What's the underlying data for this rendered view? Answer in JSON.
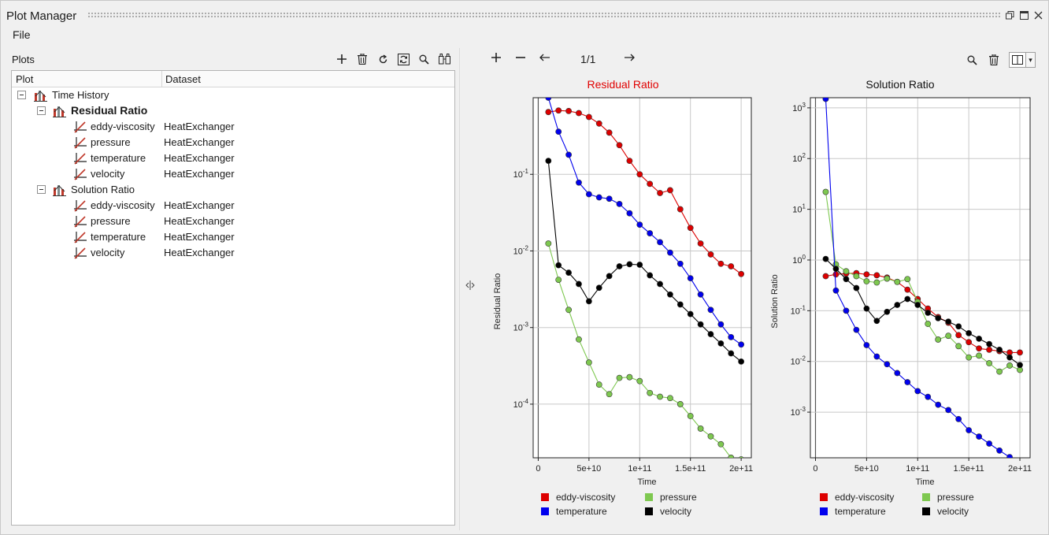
{
  "window": {
    "title": "Plot Manager"
  },
  "menu": {
    "file": "File"
  },
  "left": {
    "label": "Plots",
    "columns": {
      "plot": "Plot",
      "dataset": "Dataset"
    },
    "tree": {
      "root": "Time History",
      "groups": [
        {
          "label": "Residual Ratio",
          "bold": true,
          "items": [
            {
              "name": "eddy-viscosity",
              "dataset": "HeatExchanger"
            },
            {
              "name": "pressure",
              "dataset": "HeatExchanger"
            },
            {
              "name": "temperature",
              "dataset": "HeatExchanger"
            },
            {
              "name": "velocity",
              "dataset": "HeatExchanger"
            }
          ]
        },
        {
          "label": "Solution Ratio",
          "bold": false,
          "items": [
            {
              "name": "eddy-viscosity",
              "dataset": "HeatExchanger"
            },
            {
              "name": "pressure",
              "dataset": "HeatExchanger"
            },
            {
              "name": "temperature",
              "dataset": "HeatExchanger"
            },
            {
              "name": "velocity",
              "dataset": "HeatExchanger"
            }
          ]
        }
      ]
    },
    "toolbar_icons": [
      "add-icon",
      "delete-icon",
      "refresh-icon",
      "reload-icon",
      "search-icon",
      "compare-icon"
    ]
  },
  "right": {
    "page": "1/1",
    "toolbar_icons": [
      "zoom-in-icon",
      "zoom-out-icon",
      "back-arrow-icon",
      "forward-arrow-icon",
      "search-icon",
      "delete-icon",
      "layout-icon",
      "dropdown-icon"
    ]
  },
  "colors": {
    "eddy-viscosity": "#dd0000",
    "pressure": "#7ec850",
    "temperature": "#0000ee",
    "velocity": "#000000",
    "active_title": "#e00000"
  },
  "chart_data": [
    {
      "type": "line",
      "title": "Residual Ratio",
      "title_active": true,
      "xlabel": "Time",
      "ylabel": "Residual Ratio",
      "xlim": [
        -5000000000.0,
        210000000000.0
      ],
      "ylim_log10": [
        -4.7,
        0.0
      ],
      "x_ticks": [
        {
          "v": 0,
          "label": "0"
        },
        {
          "v": 50000000000.0,
          "label": "5e+10"
        },
        {
          "v": 100000000000.0,
          "label": "1e+11"
        },
        {
          "v": 150000000000.0,
          "label": "1.5e+11"
        },
        {
          "v": 200000000000.0,
          "label": "2e+11"
        }
      ],
      "y_ticks": [
        {
          "v": -1,
          "base": "10",
          "exp": "-1"
        },
        {
          "v": -2,
          "base": "10",
          "exp": "-2"
        },
        {
          "v": -3,
          "base": "10",
          "exp": "-3"
        },
        {
          "v": -4,
          "base": "10",
          "exp": "-4"
        }
      ],
      "x": [
        10000000000.0,
        20000000000.0,
        30000000000.0,
        40000000000.0,
        50000000000.0,
        60000000000.0,
        70000000000.0,
        80000000000.0,
        90000000000.0,
        100000000000.0,
        110000000000.0,
        120000000000.0,
        130000000000.0,
        140000000000.0,
        150000000000.0,
        160000000000.0,
        170000000000.0,
        180000000000.0,
        190000000000.0,
        200000000000.0
      ],
      "series": [
        {
          "name": "eddy-viscosity",
          "values": [
            0.65,
            0.68,
            0.67,
            0.63,
            0.56,
            0.46,
            0.35,
            0.24,
            0.15,
            0.1,
            0.075,
            0.057,
            0.062,
            0.035,
            0.02,
            0.0125,
            0.009,
            0.0068,
            0.0063,
            0.005
          ]
        },
        {
          "name": "pressure",
          "values": [
            0.0125,
            0.0042,
            0.0017,
            0.0007,
            0.00035,
            0.00018,
            0.000135,
            0.00022,
            0.000225,
            0.0002,
            0.00014,
            0.000125,
            0.00012,
            0.0001,
            7e-05,
            4.8e-05,
            3.8e-05,
            3e-05,
            2e-05,
            1.9e-05
          ]
        },
        {
          "name": "temperature",
          "values": [
            1.0,
            0.36,
            0.18,
            0.078,
            0.055,
            0.05,
            0.048,
            0.041,
            0.031,
            0.022,
            0.017,
            0.013,
            0.0095,
            0.0068,
            0.0044,
            0.0027,
            0.0017,
            0.0011,
            0.00075,
            0.0006
          ]
        },
        {
          "name": "velocity",
          "values": [
            0.15,
            0.0065,
            0.0052,
            0.0037,
            0.0022,
            0.0033,
            0.0047,
            0.0063,
            0.0067,
            0.0066,
            0.0048,
            0.0037,
            0.0027,
            0.002,
            0.0015,
            0.0011,
            0.00082,
            0.00062,
            0.00046,
            0.00036
          ]
        }
      ],
      "legend": "bottom"
    },
    {
      "type": "line",
      "title": "Solution Ratio",
      "title_active": false,
      "xlabel": "Time",
      "ylabel": "Solution Ratio",
      "xlim": [
        -5000000000.0,
        210000000000.0
      ],
      "ylim_log10": [
        -3.9,
        3.2
      ],
      "x_ticks": [
        {
          "v": 0,
          "label": "0"
        },
        {
          "v": 50000000000.0,
          "label": "5e+10"
        },
        {
          "v": 100000000000.0,
          "label": "1e+11"
        },
        {
          "v": 150000000000.0,
          "label": "1.5e+11"
        },
        {
          "v": 200000000000.0,
          "label": "2e+11"
        }
      ],
      "y_ticks": [
        {
          "v": 3,
          "base": "10",
          "exp": "3"
        },
        {
          "v": 2,
          "base": "10",
          "exp": "2"
        },
        {
          "v": 1,
          "base": "10",
          "exp": "1"
        },
        {
          "v": 0,
          "base": "10",
          "exp": "0"
        },
        {
          "v": -1,
          "base": "10",
          "exp": "-1"
        },
        {
          "v": -2,
          "base": "10",
          "exp": "-2"
        },
        {
          "v": -3,
          "base": "10",
          "exp": "-3"
        }
      ],
      "x": [
        10000000000.0,
        20000000000.0,
        30000000000.0,
        40000000000.0,
        50000000000.0,
        60000000000.0,
        70000000000.0,
        80000000000.0,
        90000000000.0,
        100000000000.0,
        110000000000.0,
        120000000000.0,
        130000000000.0,
        140000000000.0,
        150000000000.0,
        160000000000.0,
        170000000000.0,
        180000000000.0,
        190000000000.0,
        200000000000.0
      ],
      "series": [
        {
          "name": "eddy-viscosity",
          "values": [
            0.48,
            0.52,
            0.54,
            0.55,
            0.52,
            0.5,
            0.45,
            0.37,
            0.26,
            0.17,
            0.11,
            0.075,
            0.058,
            0.033,
            0.024,
            0.018,
            0.017,
            0.016,
            0.015,
            0.015
          ]
        },
        {
          "name": "pressure",
          "values": [
            22,
            0.82,
            0.6,
            0.48,
            0.38,
            0.36,
            0.43,
            0.37,
            0.42,
            0.15,
            0.055,
            0.027,
            0.032,
            0.02,
            0.012,
            0.013,
            0.0092,
            0.0063,
            0.0083,
            0.0068
          ]
        },
        {
          "name": "temperature",
          "values": [
            1500,
            0.25,
            0.1,
            0.042,
            0.021,
            0.0125,
            0.0088,
            0.0059,
            0.0039,
            0.0026,
            0.002,
            0.0014,
            0.0011,
            0.00073,
            0.00044,
            0.00033,
            0.00024,
            0.000175,
            0.00013,
            0.000112
          ]
        },
        {
          "name": "velocity",
          "values": [
            1.05,
            0.67,
            0.42,
            0.28,
            0.11,
            0.063,
            0.095,
            0.13,
            0.17,
            0.13,
            0.091,
            0.071,
            0.061,
            0.049,
            0.036,
            0.028,
            0.022,
            0.017,
            0.012,
            0.0085
          ]
        }
      ],
      "legend": "bottom"
    }
  ]
}
